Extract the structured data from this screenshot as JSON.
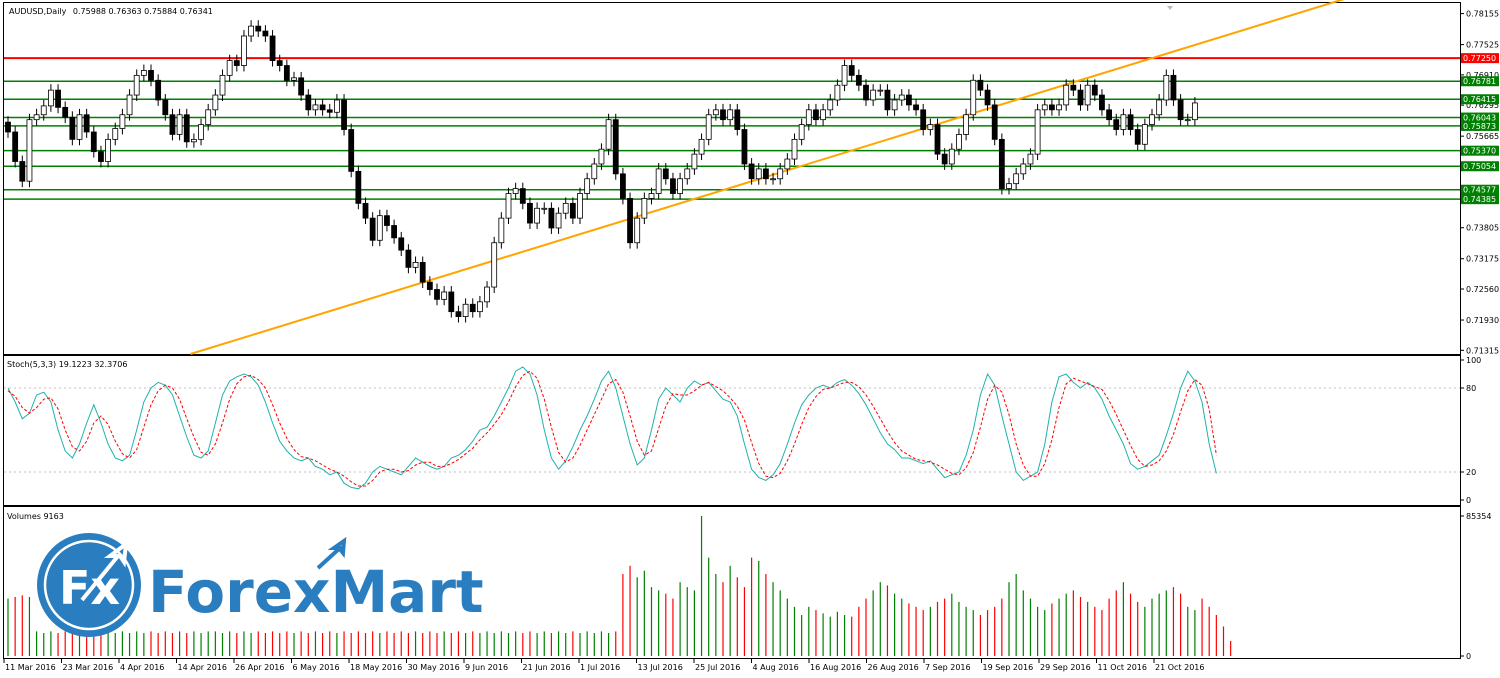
{
  "chart_data": [
    {
      "type": "candlestick",
      "title": "AUDUSD,Daily",
      "ohlc_readout": "0.75988 0.76363 0.75884 0.76341",
      "y_ticks": [
        "0.78155",
        "0.77525",
        "0.76910",
        "0.76295",
        "0.75665",
        "0.75050",
        "0.74420",
        "0.73805",
        "0.73175",
        "0.72560",
        "0.71930",
        "0.71315"
      ],
      "ylim": [
        0.7124,
        0.7837
      ],
      "horizontal_levels": [
        {
          "label": "0.77250",
          "value": 0.7725,
          "color": "#ff0000"
        },
        {
          "label": "0.76781",
          "value": 0.76781,
          "color": "#008000"
        },
        {
          "label": "0.76415",
          "value": 0.76415,
          "color": "#008000"
        },
        {
          "label": "0.76043",
          "value": 0.76043,
          "color": "#008000"
        },
        {
          "label": "0.75873",
          "value": 0.75873,
          "color": "#008000"
        },
        {
          "label": "0.75370",
          "value": 0.7537,
          "color": "#008000"
        },
        {
          "label": "0.75054",
          "value": 0.75054,
          "color": "#008000"
        },
        {
          "label": "0.74577",
          "value": 0.74577,
          "color": "#008000"
        },
        {
          "label": "0.74385",
          "value": 0.74385,
          "color": "#008000"
        }
      ],
      "trendline": {
        "start": {
          "bar": 0,
          "value": 0.701
        },
        "end": {
          "bar": 160,
          "value": 0.7725
        },
        "color": "#ffa500"
      },
      "closes": [
        0.7575,
        0.7515,
        0.7475,
        0.76,
        0.761,
        0.7628,
        0.766,
        0.7625,
        0.7605,
        0.756,
        0.761,
        0.7575,
        0.7535,
        0.7515,
        0.756,
        0.7582,
        0.761,
        0.765,
        0.769,
        0.77,
        0.768,
        0.764,
        0.761,
        0.757,
        0.761,
        0.7555,
        0.756,
        0.759,
        0.762,
        0.765,
        0.769,
        0.772,
        0.771,
        0.777,
        0.779,
        0.778,
        0.777,
        0.772,
        0.771,
        0.768,
        0.7685,
        0.765,
        0.762,
        0.763,
        0.762,
        0.7615,
        0.764,
        0.758,
        0.7495,
        0.743,
        0.74,
        0.7355,
        0.7405,
        0.7385,
        0.736,
        0.7335,
        0.73,
        0.731,
        0.727,
        0.7255,
        0.7235,
        0.725,
        0.721,
        0.72,
        0.7225,
        0.721,
        0.723,
        0.726,
        0.735,
        0.74,
        0.745,
        0.746,
        0.743,
        0.739,
        0.742,
        0.742,
        0.738,
        0.741,
        0.743,
        0.74,
        0.745,
        0.748,
        0.751,
        0.754,
        0.76,
        0.749,
        0.744,
        0.735,
        0.74,
        0.744,
        0.745,
        0.75,
        0.748,
        0.745,
        0.748,
        0.75,
        0.753,
        0.756,
        0.761,
        0.762,
        0.76,
        0.762,
        0.758,
        0.751,
        0.748,
        0.75,
        0.748,
        0.748,
        0.75,
        0.752,
        0.756,
        0.759,
        0.762,
        0.76,
        0.762,
        0.764,
        0.767,
        0.771,
        0.769,
        0.767,
        0.764,
        0.766,
        0.766,
        0.762,
        0.764,
        0.765,
        0.763,
        0.762,
        0.758,
        0.759,
        0.753,
        0.751,
        0.754,
        0.757,
        0.761,
        0.768,
        0.766,
        0.763,
        0.756,
        0.746,
        0.747,
        0.749,
        0.751,
        0.753,
        0.762,
        0.763,
        0.762,
        0.763,
        0.767,
        0.766,
        0.763,
        0.767,
        0.765,
        0.762,
        0.76,
        0.758,
        0.761,
        0.758,
        0.755,
        0.759,
        0.761,
        0.764,
        0.769,
        0.764,
        0.76,
        0.76,
        0.7634
      ]
    },
    {
      "type": "line",
      "title": "Stoch(5,3,3) 19.1223 32.3706",
      "y_ticks": [
        "100",
        "80",
        "20",
        "0"
      ],
      "ylim": [
        0,
        100
      ],
      "series": [
        {
          "color": "#20b2aa",
          "values": [
            80,
            70,
            58,
            62,
            75,
            77,
            70,
            50,
            35,
            30,
            40,
            55,
            68,
            55,
            40,
            30,
            28,
            32,
            50,
            70,
            80,
            84,
            82,
            75,
            60,
            45,
            32,
            30,
            35,
            55,
            75,
            85,
            88,
            90,
            88,
            82,
            70,
            55,
            42,
            35,
            30,
            28,
            30,
            24,
            22,
            18,
            20,
            12,
            9,
            8,
            12,
            20,
            24,
            22,
            20,
            18,
            24,
            30,
            27,
            24,
            22,
            24,
            30,
            32,
            36,
            42,
            50,
            52,
            60,
            70,
            80,
            92,
            95,
            90,
            75,
            50,
            30,
            22,
            28,
            38,
            50,
            60,
            72,
            85,
            92,
            80,
            60,
            40,
            25,
            30,
            50,
            72,
            80,
            75,
            70,
            80,
            85,
            82,
            84,
            78,
            72,
            70,
            60,
            40,
            22,
            16,
            14,
            18,
            26,
            40,
            55,
            68,
            75,
            80,
            82,
            80,
            84,
            86,
            82,
            76,
            68,
            58,
            48,
            40,
            36,
            30,
            30,
            28,
            26,
            28,
            22,
            16,
            18,
            20,
            32,
            50,
            75,
            90,
            82,
            60,
            40,
            20,
            14,
            17,
            20,
            40,
            70,
            88,
            90,
            84,
            80,
            84,
            80,
            72,
            60,
            50,
            40,
            26,
            22,
            24,
            28,
            32,
            46,
            62,
            80,
            92,
            85,
            70,
            40,
            19
          ]
        },
        {
          "color": "#ff0000",
          "values": [
            78,
            74,
            66,
            62,
            66,
            72,
            73,
            65,
            50,
            38,
            35,
            42,
            55,
            60,
            54,
            42,
            33,
            30,
            36,
            52,
            68,
            78,
            82,
            80,
            72,
            58,
            45,
            34,
            32,
            40,
            55,
            72,
            83,
            88,
            89,
            86,
            80,
            68,
            55,
            44,
            36,
            31,
            30,
            28,
            25,
            22,
            20,
            17,
            13,
            10,
            10,
            14,
            20,
            22,
            22,
            20,
            21,
            25,
            27,
            27,
            24,
            24,
            26,
            29,
            33,
            37,
            43,
            48,
            54,
            61,
            70,
            81,
            89,
            92,
            87,
            72,
            52,
            34,
            27,
            30,
            39,
            50,
            61,
            72,
            83,
            86,
            77,
            60,
            42,
            32,
            35,
            51,
            67,
            76,
            75,
            75,
            78,
            82,
            84,
            81,
            78,
            73,
            67,
            57,
            41,
            26,
            17,
            16,
            19,
            28,
            40,
            54,
            66,
            74,
            79,
            80,
            82,
            84,
            84,
            81,
            75,
            67,
            58,
            49,
            41,
            35,
            32,
            29,
            28,
            27,
            25,
            22,
            19,
            18,
            23,
            34,
            52,
            72,
            82,
            77,
            61,
            40,
            25,
            17,
            17,
            26,
            43,
            66,
            83,
            87,
            85,
            83,
            81,
            79,
            71,
            61,
            50,
            39,
            29,
            24,
            25,
            28,
            35,
            47,
            63,
            78,
            86,
            82,
            65,
            32
          ]
        }
      ]
    },
    {
      "type": "bar",
      "title": "Volumes 9163",
      "y_ticks": [
        "85354",
        "0"
      ],
      "ylim": [
        0,
        85354
      ],
      "values": [
        35000,
        36000,
        37000,
        36000,
        15000,
        14000,
        15000,
        14000,
        15000,
        15000,
        14000,
        15000,
        14000,
        15000,
        15000,
        14000,
        15000,
        14000,
        15000,
        14000,
        15000,
        14000,
        15000,
        14000,
        15000,
        14000,
        15000,
        14000,
        15000,
        15000,
        14000,
        15000,
        14000,
        15000,
        14000,
        15000,
        14000,
        15000,
        14000,
        15000,
        14000,
        15000,
        14000,
        15000,
        14000,
        15000,
        14000,
        15000,
        14000,
        15000,
        14000,
        15000,
        14000,
        15000,
        14000,
        15000,
        14000,
        15000,
        14000,
        15000,
        14000,
        15000,
        14000,
        15000,
        14000,
        15000,
        14000,
        15000,
        14000,
        15000,
        14000,
        15000,
        14000,
        15000,
        14000,
        15000,
        14000,
        15000,
        14000,
        15000,
        14000,
        15000,
        14000,
        15000,
        14000,
        15000,
        50000,
        55000,
        48000,
        52000,
        42000,
        40000,
        38000,
        35000,
        45000,
        42000,
        40000,
        85354,
        60000,
        50000,
        45000,
        55000,
        48000,
        42000,
        60000,
        58000,
        50000,
        45000,
        40000,
        35000,
        30000,
        25000,
        30000,
        28000,
        26000,
        24000,
        27000,
        25000,
        24000,
        30000,
        35000,
        40000,
        45000,
        43000,
        38000,
        35000,
        32000,
        30000,
        28000,
        30000,
        33000,
        35000,
        38000,
        33000,
        30000,
        28000,
        25000,
        28000,
        30000,
        35000,
        45000,
        50000,
        40000,
        35000,
        30000,
        28000,
        32000,
        35000,
        38000,
        40000,
        36000,
        33000,
        30000,
        28000,
        35000,
        40000,
        45000,
        38000,
        33000,
        30000,
        35000,
        38000,
        40000,
        42000,
        38000,
        30000,
        28000,
        35000,
        30000,
        25000,
        18000,
        9163
      ],
      "up_color": "#008000",
      "down_color": "#ff0000"
    }
  ],
  "x_ticks": [
    "11 Mar 2016",
    "23 Mar 2016",
    "4 Apr 2016",
    "14 Apr 2016",
    "26 Apr 2016",
    "6 May 2016",
    "18 May 2016",
    "30 May 2016",
    "9 Jun 2016",
    "21 Jun 2016",
    "1 Jul 2016",
    "13 Jul 2016",
    "25 Jul 2016",
    "4 Aug 2016",
    "16 Aug 2016",
    "26 Aug 2016",
    "7 Sep 2016",
    "19 Sep 2016",
    "29 Sep 2016",
    "11 Oct 2016",
    "21 Oct 2016"
  ],
  "stoch_levels": [
    80,
    20
  ],
  "watermark": {
    "brand": "ForexMart",
    "mark": "Fx"
  }
}
